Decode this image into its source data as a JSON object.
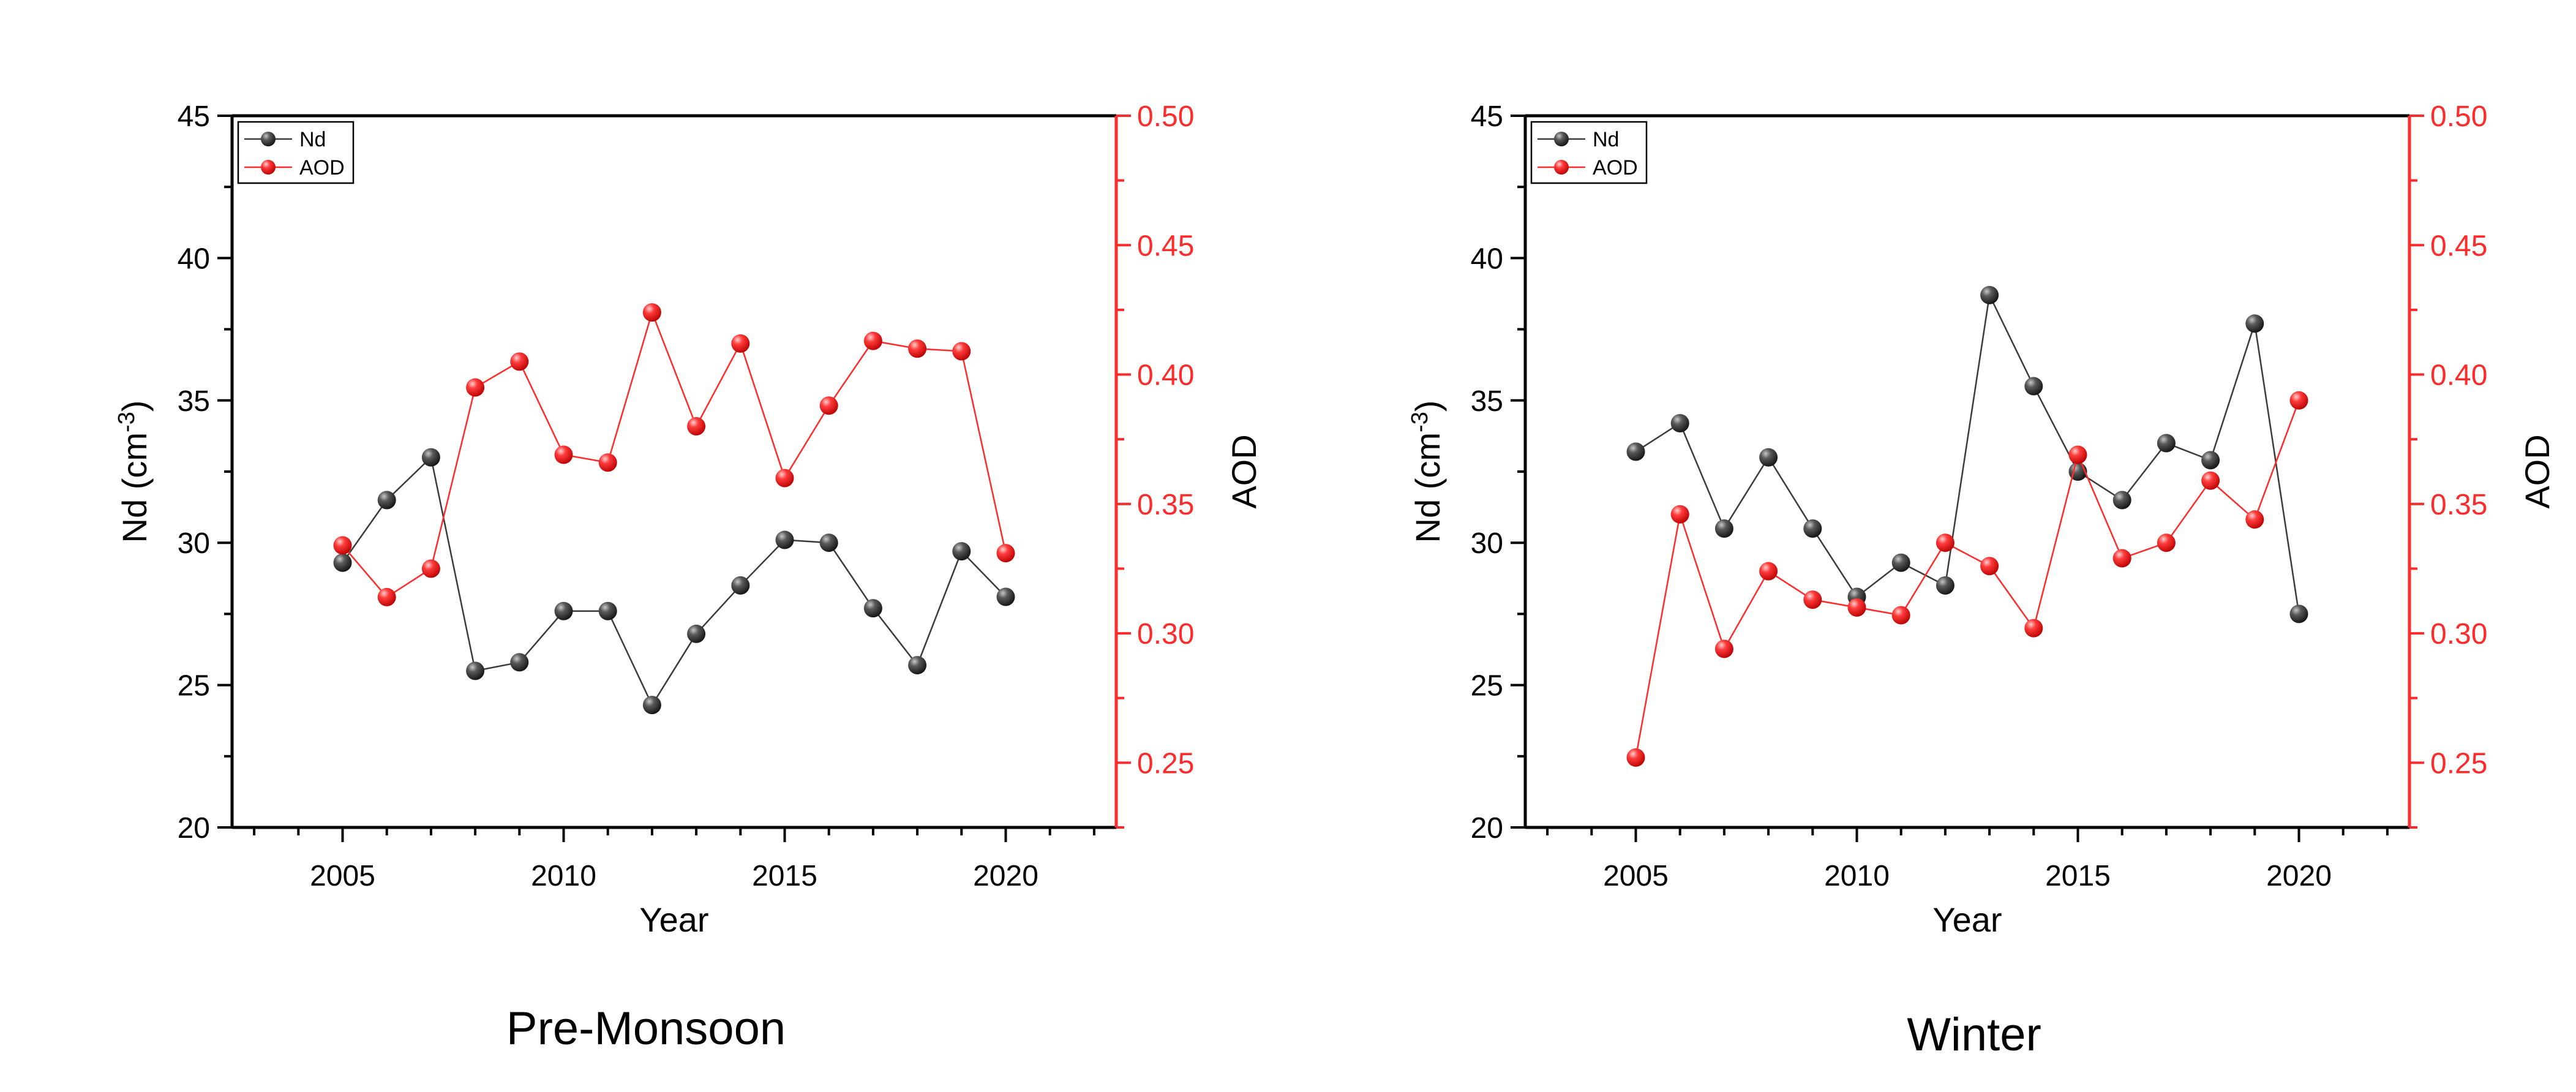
{
  "chart_data": [
    {
      "type": "line",
      "caption": "Pre-Monsoon",
      "xlabel": "Year",
      "ylabel_left_main": "Nd (cm",
      "ylabel_left_sup": "-3",
      "ylabel_left_end": ")",
      "ylabel_right": "AOD",
      "x_ticks": [
        "2005",
        "2010",
        "2015",
        "2020"
      ],
      "y_left_ticks": [
        "20",
        "25",
        "30",
        "35",
        "40",
        "45"
      ],
      "y_right_ticks": [
        "0.25",
        "0.30",
        "0.35",
        "0.40",
        "0.45",
        "0.50"
      ],
      "xlim": [
        2002.5,
        2022.5
      ],
      "ylim_left": [
        20,
        45
      ],
      "ylim_right": [
        0.225,
        0.5
      ],
      "legend": "top-left",
      "grid": false,
      "x": [
        2005,
        2006,
        2007,
        2008,
        2009,
        2010,
        2011,
        2012,
        2013,
        2014,
        2015,
        2016,
        2017,
        2018,
        2019,
        2020
      ],
      "series": [
        {
          "name": "Nd",
          "axis": "left",
          "color": "#3a3a3a",
          "values": [
            29.3,
            31.5,
            33.0,
            25.5,
            25.8,
            27.6,
            27.6,
            24.3,
            26.8,
            28.5,
            30.1,
            30.0,
            27.7,
            25.7,
            29.7,
            28.1
          ]
        },
        {
          "name": "AOD",
          "axis": "right",
          "color": "#ff2a2a",
          "values": [
            0.334,
            0.314,
            0.325,
            0.395,
            0.405,
            0.369,
            0.366,
            0.424,
            0.38,
            0.412,
            0.36,
            0.388,
            0.413,
            0.41,
            0.409,
            0.331
          ]
        }
      ]
    },
    {
      "type": "line",
      "caption": "Winter",
      "xlabel": "Year",
      "ylabel_left_main": "Nd (cm",
      "ylabel_left_sup": "-3",
      "ylabel_left_end": ")",
      "ylabel_right": "AOD",
      "x_ticks": [
        "2005",
        "2010",
        "2015",
        "2020"
      ],
      "y_left_ticks": [
        "20",
        "25",
        "30",
        "35",
        "40",
        "45"
      ],
      "y_right_ticks": [
        "0.25",
        "0.30",
        "0.35",
        "0.40",
        "0.45",
        "0.50"
      ],
      "xlim": [
        2002.5,
        2022.5
      ],
      "ylim_left": [
        20,
        45
      ],
      "ylim_right": [
        0.225,
        0.5
      ],
      "legend": "top-left",
      "grid": false,
      "x": [
        2005,
        2006,
        2007,
        2008,
        2009,
        2010,
        2011,
        2012,
        2013,
        2014,
        2015,
        2016,
        2017,
        2018,
        2019,
        2020
      ],
      "series": [
        {
          "name": "Nd",
          "axis": "left",
          "color": "#3a3a3a",
          "values": [
            33.2,
            34.2,
            30.5,
            33.0,
            30.5,
            28.1,
            29.3,
            28.5,
            38.7,
            35.5,
            32.5,
            31.5,
            33.5,
            32.9,
            37.7,
            27.5
          ]
        },
        {
          "name": "AOD",
          "axis": "right",
          "color": "#ff2a2a",
          "values": [
            0.252,
            0.346,
            0.294,
            0.324,
            0.313,
            0.31,
            0.307,
            0.335,
            0.326,
            0.302,
            0.369,
            0.329,
            0.335,
            0.359,
            0.344,
            0.39
          ]
        }
      ]
    }
  ]
}
